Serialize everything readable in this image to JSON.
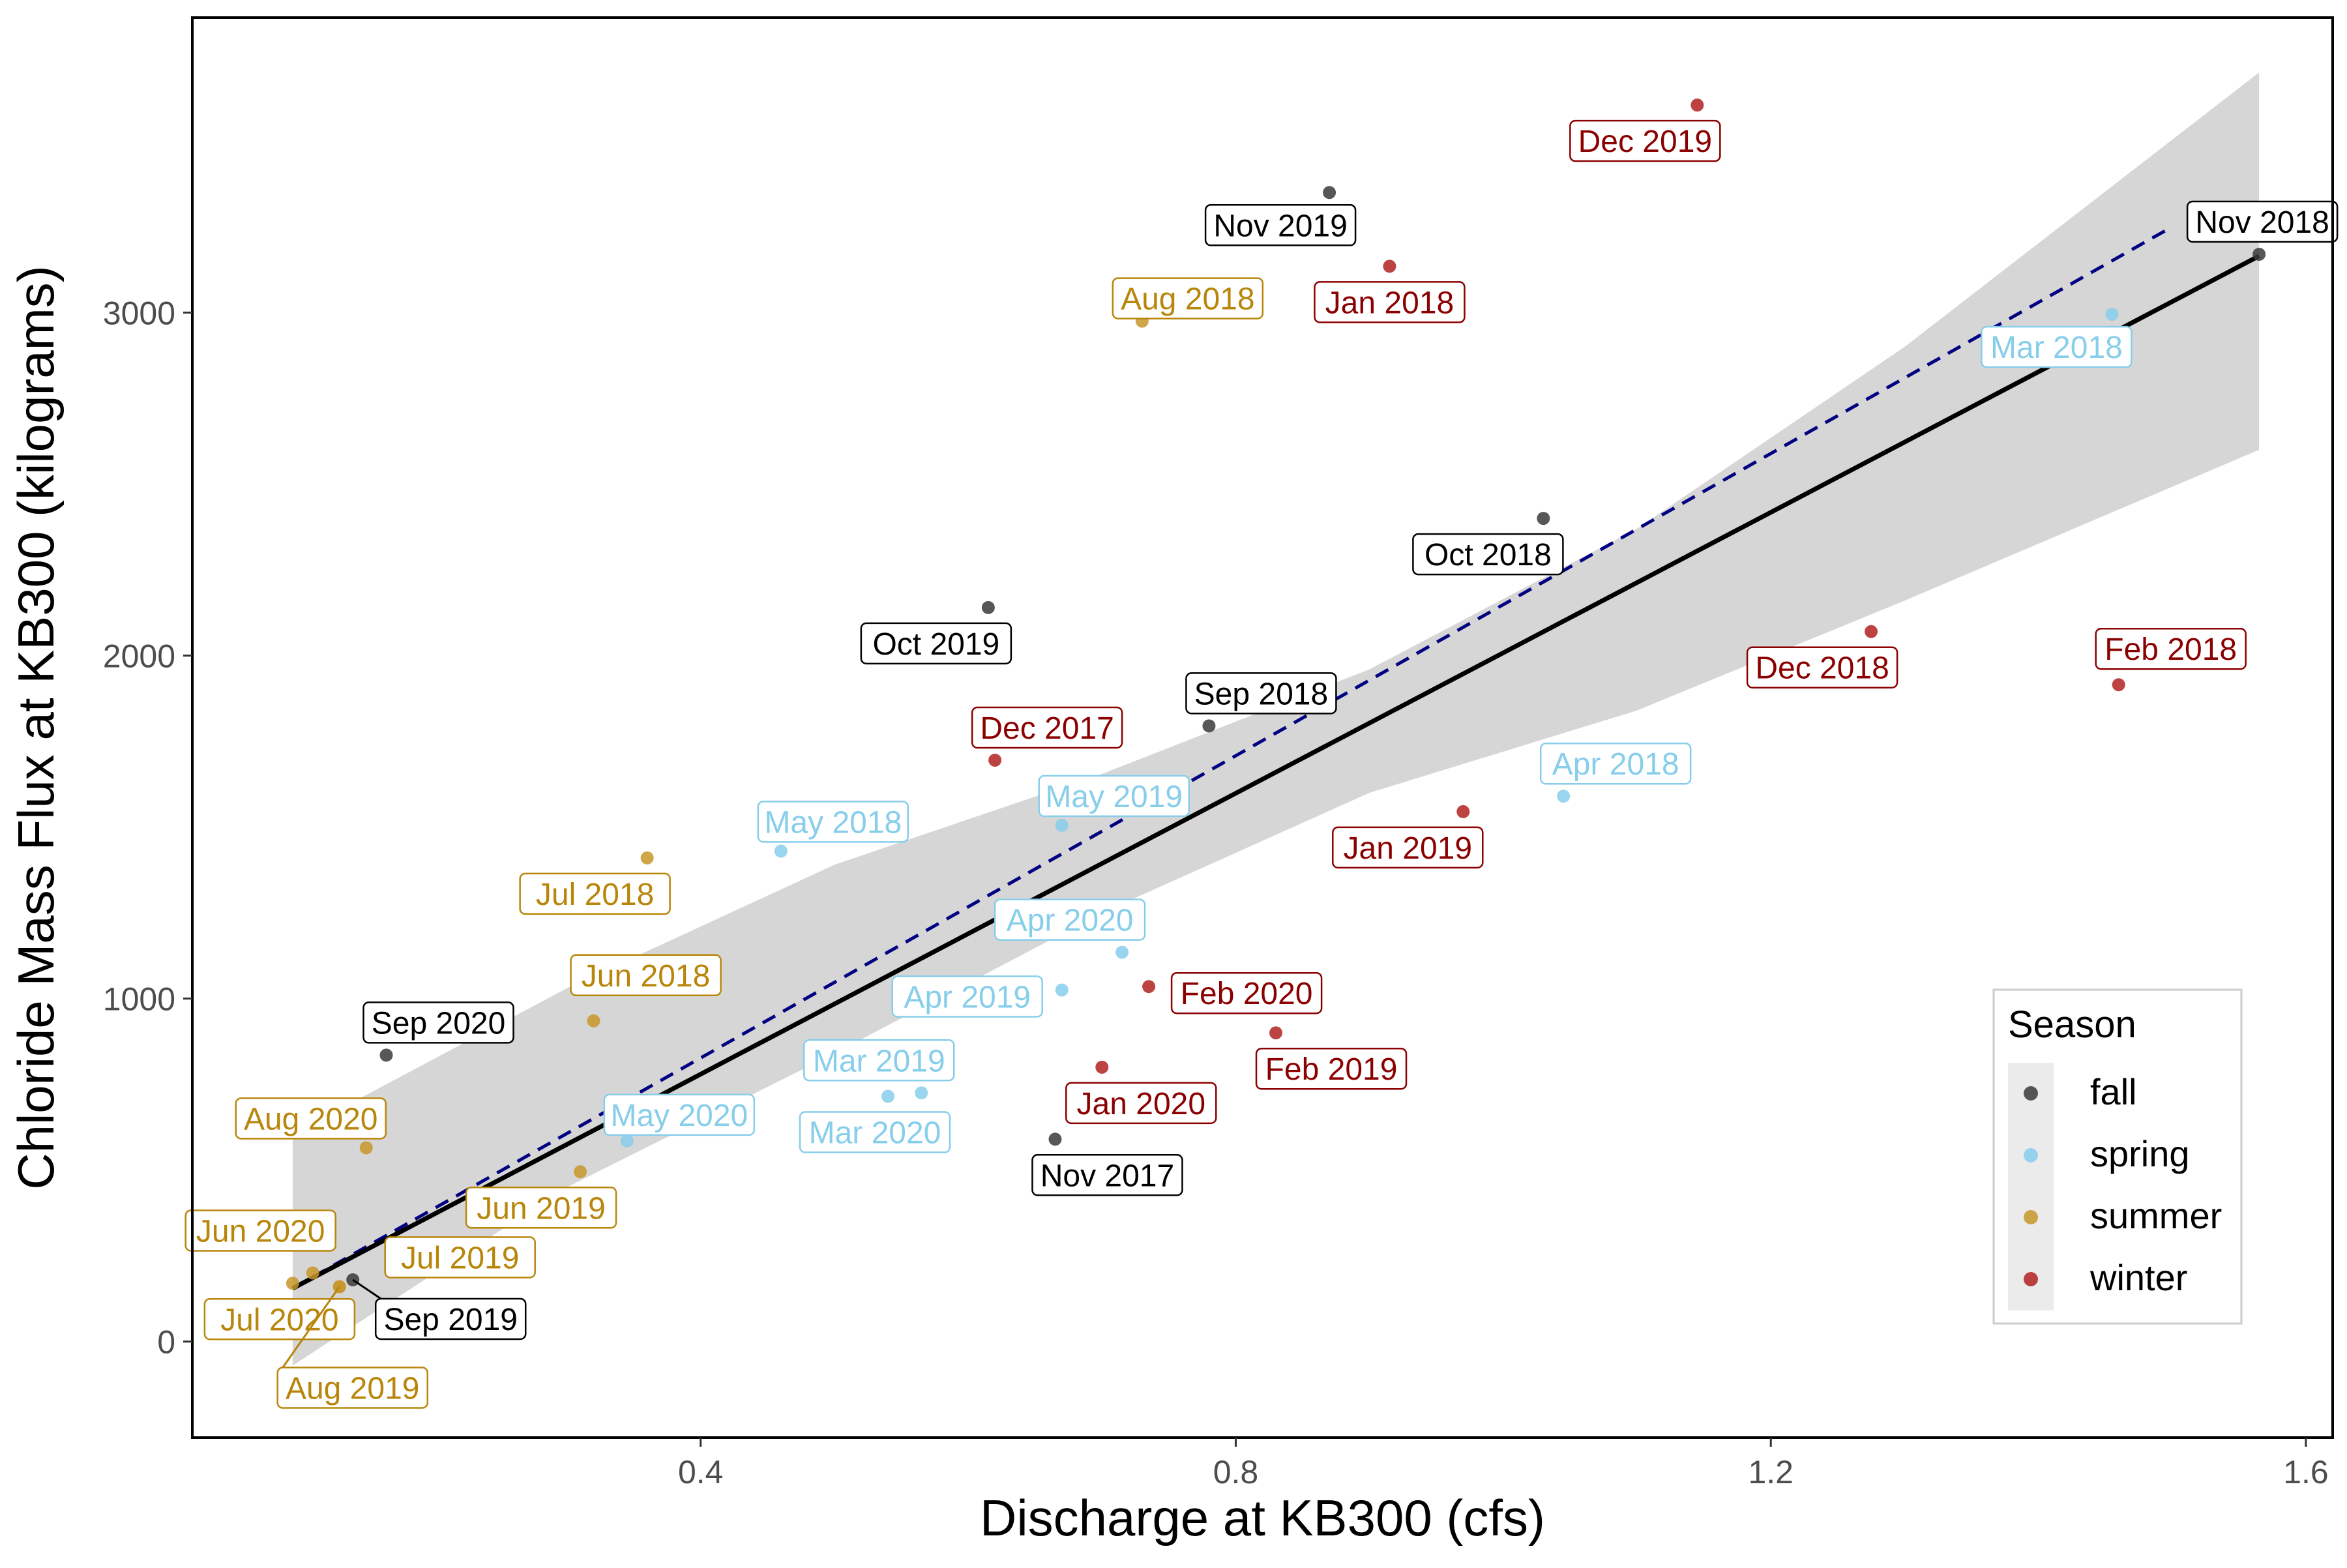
{
  "chart_data": {
    "type": "scatter",
    "title": "",
    "xlabel": "Discharge at KB300 (cfs)",
    "ylabel": "Chloride Mass Flux at KB300 (kilograms)",
    "xlim": [
      0.02,
      1.62
    ],
    "ylim": [
      -280,
      3860
    ],
    "x_ticks": [
      0.4,
      0.8,
      1.2,
      1.6
    ],
    "x_tick_labels": [
      "0.4",
      "0.8",
      "1.2",
      "1.6"
    ],
    "y_ticks": [
      0,
      1000,
      2000,
      3000
    ],
    "y_tick_labels": [
      "0",
      "1000",
      "2000",
      "3000"
    ],
    "grid": false,
    "legend": {
      "title": "Season",
      "position": "bottom-right",
      "entries": [
        {
          "label": "fall",
          "color": "#3a3a3a",
          "text_color": "#000000"
        },
        {
          "label": "spring",
          "color": "#87ceeb",
          "text_color": "#87ceeb"
        },
        {
          "label": "summer",
          "color": "#c8962a",
          "text_color": "#b8860b"
        },
        {
          "label": "winter",
          "color": "#b22222",
          "text_color": "#8b0000"
        }
      ]
    },
    "points": [
      {
        "label": "Dec 2019",
        "season": "winter",
        "x": 1.145,
        "y": 3605
      },
      {
        "label": "Nov 2019",
        "season": "fall",
        "x": 0.87,
        "y": 3350
      },
      {
        "label": "Jan 2018",
        "season": "winter",
        "x": 0.915,
        "y": 3135
      },
      {
        "label": "Aug 2018",
        "season": "summer",
        "x": 0.73,
        "y": 2975
      },
      {
        "label": "Nov 2018",
        "season": "fall",
        "x": 1.565,
        "y": 3170
      },
      {
        "label": "Mar 2018",
        "season": "spring",
        "x": 1.455,
        "y": 2995
      },
      {
        "label": "Oct 2018",
        "season": "fall",
        "x": 1.03,
        "y": 2400
      },
      {
        "label": "Oct 2019",
        "season": "fall",
        "x": 0.615,
        "y": 2140
      },
      {
        "label": "Dec 2018",
        "season": "winter",
        "x": 1.275,
        "y": 2070
      },
      {
        "label": "Feb 2018",
        "season": "winter",
        "x": 1.46,
        "y": 1915
      },
      {
        "label": "Sep 2018",
        "season": "fall",
        "x": 0.78,
        "y": 1795
      },
      {
        "label": "Dec 2017",
        "season": "winter",
        "x": 0.62,
        "y": 1695
      },
      {
        "label": "Apr 2018",
        "season": "spring",
        "x": 1.045,
        "y": 1590
      },
      {
        "label": "May 2019",
        "season": "spring",
        "x": 0.67,
        "y": 1505
      },
      {
        "label": "Jan 2019",
        "season": "winter",
        "x": 0.97,
        "y": 1545
      },
      {
        "label": "May 2018",
        "season": "spring",
        "x": 0.46,
        "y": 1430
      },
      {
        "label": "Jul 2018",
        "season": "summer",
        "x": 0.36,
        "y": 1410
      },
      {
        "label": "Apr 2020",
        "season": "spring",
        "x": 0.715,
        "y": 1135
      },
      {
        "label": "Feb 2020",
        "season": "winter",
        "x": 0.735,
        "y": 1035
      },
      {
        "label": "Apr 2019",
        "season": "spring",
        "x": 0.67,
        "y": 1025
      },
      {
        "label": "Jun 2018",
        "season": "summer",
        "x": 0.32,
        "y": 935
      },
      {
        "label": "Feb 2019",
        "season": "winter",
        "x": 0.83,
        "y": 900
      },
      {
        "label": "Sep 2020",
        "season": "fall",
        "x": 0.165,
        "y": 835
      },
      {
        "label": "Jan 2020",
        "season": "winter",
        "x": 0.7,
        "y": 800
      },
      {
        "label": "Mar 2019",
        "season": "spring",
        "x": 0.565,
        "y": 725
      },
      {
        "label": "Mar 2020",
        "season": "spring",
        "x": 0.54,
        "y": 715
      },
      {
        "label": "Nov 2017",
        "season": "fall",
        "x": 0.665,
        "y": 590
      },
      {
        "label": "May 2020",
        "season": "spring",
        "x": 0.345,
        "y": 585
      },
      {
        "label": "Aug 2020",
        "season": "summer",
        "x": 0.15,
        "y": 565
      },
      {
        "label": "Jun 2019",
        "season": "summer",
        "x": 0.31,
        "y": 495
      },
      {
        "label": "Jun 2020",
        "season": "summer",
        "x": 0.11,
        "y": 200
      },
      {
        "label": "Sep 2019",
        "season": "fall",
        "x": 0.14,
        "y": 180
      },
      {
        "label": "Jul 2020",
        "season": "summer",
        "x": 0.095,
        "y": 170
      },
      {
        "label": "Aug 2019",
        "season": "summer",
        "x": 0.13,
        "y": 160
      },
      {
        "label": "Jul 2019",
        "season": "summer",
        "x": 0.13,
        "y": 160
      }
    ],
    "fit_line": {
      "x": [
        0.095,
        1.565
      ],
      "y": [
        155,
        3165
      ]
    },
    "confidence_band": {
      "x": [
        0.095,
        0.3,
        0.5,
        0.7,
        0.9,
        1.1,
        1.3,
        1.565
      ],
      "upper": [
        605,
        1030,
        1390,
        1655,
        1960,
        2370,
        2900,
        3700
      ],
      "lower": [
        -70,
        450,
        840,
        1250,
        1600,
        1840,
        2160,
        2600
      ]
    },
    "reference_line": {
      "x": [
        0.095,
        1.5
      ],
      "y": [
        155,
        3250
      ]
    }
  }
}
